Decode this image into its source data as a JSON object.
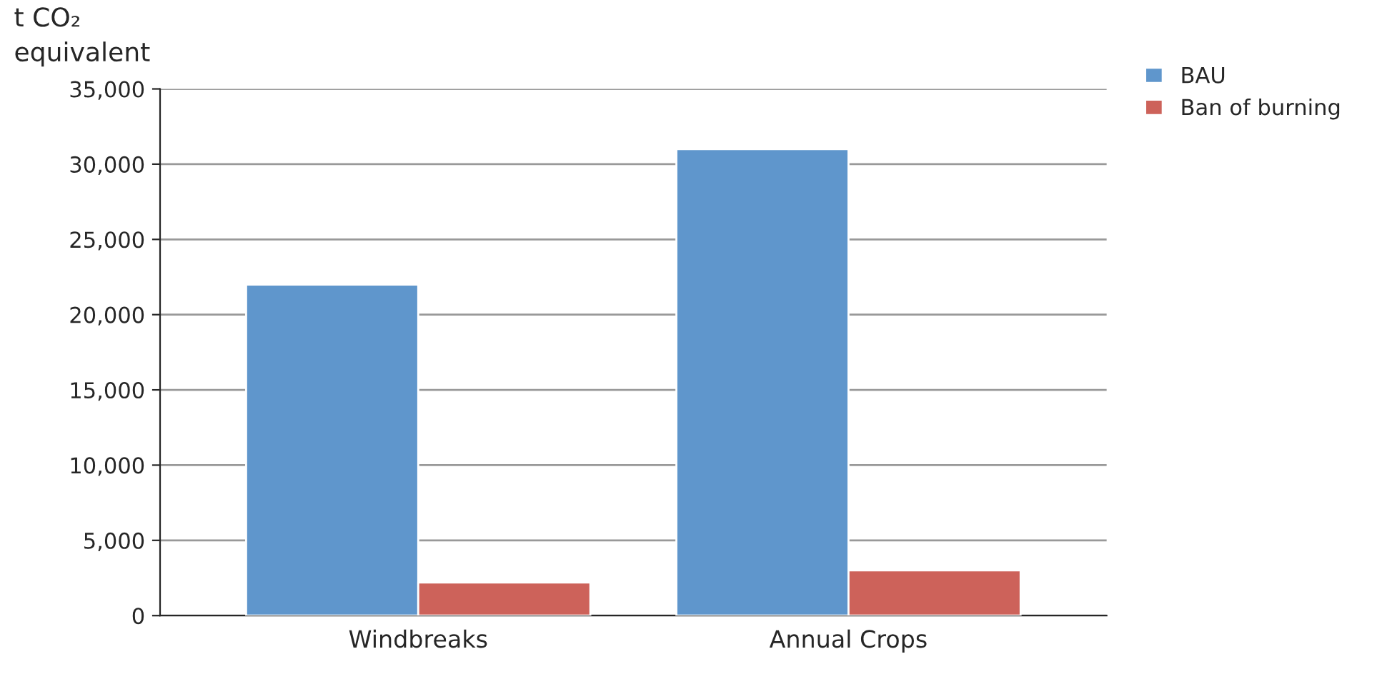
{
  "chart_data": {
    "type": "bar",
    "ylabel": "t CO₂\nequivalent",
    "categories": [
      "Windbreaks",
      "Annual Crops"
    ],
    "series": [
      {
        "name": "BAU",
        "color": "#5f96cc",
        "values": [
          22000,
          31000
        ]
      },
      {
        "name": "Ban of burning",
        "color": "#cd625a",
        "values": [
          2200,
          3000
        ]
      }
    ],
    "ylim": [
      0,
      35000
    ],
    "yticks": [
      {
        "value": 0,
        "label": "0"
      },
      {
        "value": 5000,
        "label": "5,000"
      },
      {
        "value": 10000,
        "label": "10,000"
      },
      {
        "value": 15000,
        "label": "15,000"
      },
      {
        "value": 20000,
        "label": "20,000"
      },
      {
        "value": 25000,
        "label": "25,000"
      },
      {
        "value": 30000,
        "label": "30,000"
      },
      {
        "value": 35000,
        "label": "35,000"
      }
    ],
    "grid": "y",
    "legend": "top right"
  }
}
